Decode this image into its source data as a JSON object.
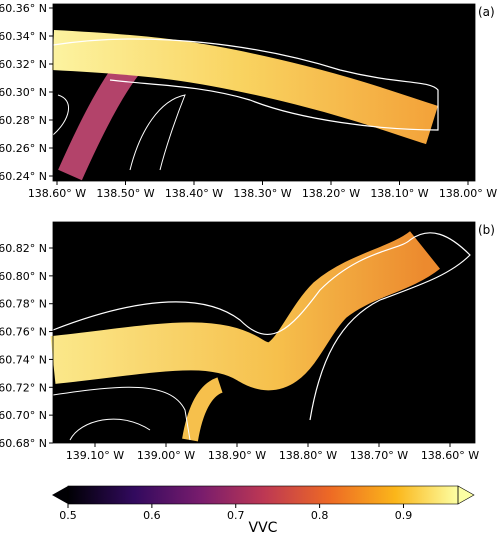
{
  "panels": [
    {
      "label": "(a)",
      "xticks": [
        "138.60° W",
        "138.50° W",
        "138.40° W",
        "138.30° W",
        "138.20° W",
        "138.10° W",
        "138.00° W"
      ],
      "yticks": [
        "60.36° N",
        "60.34° N",
        "60.32° N",
        "60.30° N",
        "60.28° N",
        "60.26° N",
        "60.24° N"
      ]
    },
    {
      "label": "(b)",
      "xticks": [
        "139.10° W",
        "139.00° W",
        "138.90° W",
        "138.80° W",
        "138.70° W",
        "138.60° W"
      ],
      "yticks": [
        "60.82° N",
        "60.80° N",
        "60.78° N",
        "60.76° N",
        "60.74° N",
        "60.72° N",
        "60.70° N",
        "60.68° N"
      ]
    }
  ],
  "colorbar": {
    "label": "VVC",
    "lim": [
      0.5,
      0.965
    ],
    "ticks": [
      0.5,
      0.6,
      0.7,
      0.8,
      0.9
    ]
  }
}
